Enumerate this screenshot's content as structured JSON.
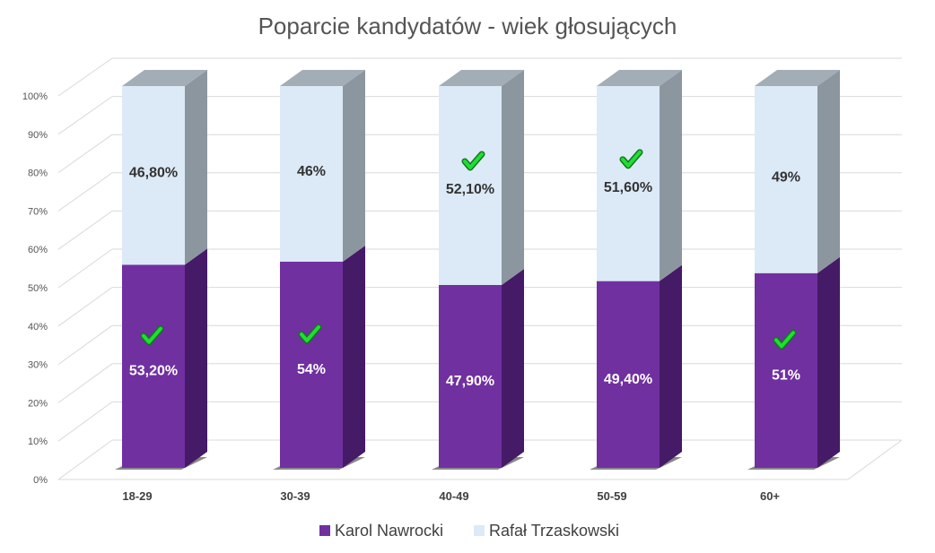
{
  "chart_data": {
    "type": "bar",
    "stacked": true,
    "title": "Poparcie kandydatów - wiek głosujących",
    "categories": [
      "18-29",
      "30-39",
      "40-49",
      "50-59",
      "60+"
    ],
    "series": [
      {
        "name": "Karol Nawrocki",
        "color": "#7030a0",
        "values": [
          53.2,
          54,
          47.9,
          49.4,
          51
        ],
        "labels": [
          "53,20%",
          "54%",
          "47,90%",
          "49,40%",
          "51%"
        ],
        "winner_check": [
          true,
          true,
          false,
          false,
          true
        ]
      },
      {
        "name": "Rafał Trzaskowski",
        "color": "#dce9f7",
        "values": [
          46.8,
          46,
          52.1,
          51.6,
          49
        ],
        "labels": [
          "46,80%",
          "46%",
          "52,10%",
          "51,60%",
          "49%"
        ],
        "winner_check": [
          false,
          false,
          true,
          true,
          false
        ]
      }
    ],
    "yticks": [
      "0%",
      "10%",
      "20%",
      "30%",
      "40%",
      "50%",
      "60%",
      "70%",
      "80%",
      "90%",
      "100%"
    ],
    "ylim": [
      0,
      100
    ],
    "grid": true,
    "legend": "bottom",
    "check_color": "#22dd33"
  }
}
